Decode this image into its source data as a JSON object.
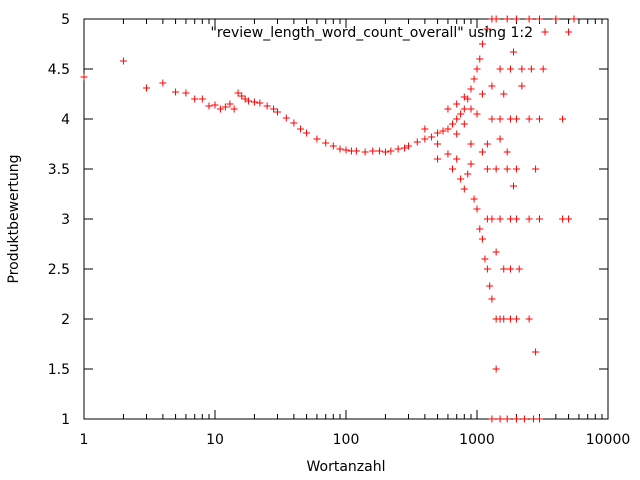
{
  "chart_data": {
    "type": "scatter",
    "xlabel": "Wortanzahl",
    "ylabel": "Produktbewertung",
    "xscale": "log",
    "xlim": [
      1,
      10000
    ],
    "ylim": [
      1,
      5
    ],
    "x_ticks": [
      {
        "value": 1,
        "label": "1"
      },
      {
        "value": 10,
        "label": "10"
      },
      {
        "value": 100,
        "label": "100"
      },
      {
        "value": 1000,
        "label": "1000"
      },
      {
        "value": 10000,
        "label": "10000"
      }
    ],
    "y_ticks": [
      {
        "value": 1,
        "label": "1"
      },
      {
        "value": 1.5,
        "label": "1.5"
      },
      {
        "value": 2,
        "label": "2"
      },
      {
        "value": 2.5,
        "label": "2.5"
      },
      {
        "value": 3,
        "label": "3"
      },
      {
        "value": 3.5,
        "label": "3.5"
      },
      {
        "value": 4,
        "label": "4"
      },
      {
        "value": 4.5,
        "label": "4.5"
      },
      {
        "value": 5,
        "label": "5"
      }
    ],
    "grid": false,
    "legend_position": "top-right",
    "marker": "plus",
    "series": [
      {
        "name": "\"review_length_word_count_overall\" using 1:2",
        "color": "#ff0000",
        "points": [
          [
            1,
            4.42
          ],
          [
            2,
            4.58
          ],
          [
            3,
            4.31
          ],
          [
            4,
            4.36
          ],
          [
            5,
            4.27
          ],
          [
            6,
            4.26
          ],
          [
            7,
            4.2
          ],
          [
            8,
            4.2
          ],
          [
            9,
            4.13
          ],
          [
            10,
            4.14
          ],
          [
            11,
            4.1
          ],
          [
            12,
            4.12
          ],
          [
            13,
            4.15
          ],
          [
            14,
            4.1
          ],
          [
            15,
            4.26
          ],
          [
            16,
            4.23
          ],
          [
            17,
            4.2
          ],
          [
            18,
            4.18
          ],
          [
            20,
            4.17
          ],
          [
            22,
            4.16
          ],
          [
            25,
            4.13
          ],
          [
            28,
            4.1
          ],
          [
            30,
            4.07
          ],
          [
            35,
            4.01
          ],
          [
            40,
            3.96
          ],
          [
            45,
            3.9
          ],
          [
            50,
            3.86
          ],
          [
            60,
            3.8
          ],
          [
            70,
            3.76
          ],
          [
            80,
            3.73
          ],
          [
            90,
            3.7
          ],
          [
            100,
            3.69
          ],
          [
            110,
            3.68
          ],
          [
            120,
            3.68
          ],
          [
            140,
            3.67
          ],
          [
            160,
            3.68
          ],
          [
            180,
            3.68
          ],
          [
            200,
            3.67
          ],
          [
            220,
            3.68
          ],
          [
            250,
            3.7
          ],
          [
            280,
            3.71
          ],
          [
            300,
            3.73
          ],
          [
            350,
            3.77
          ],
          [
            400,
            3.8
          ],
          [
            450,
            3.82
          ],
          [
            500,
            3.86
          ],
          [
            550,
            3.88
          ],
          [
            600,
            3.9
          ],
          [
            650,
            3.95
          ],
          [
            700,
            4.0
          ],
          [
            750,
            4.05
          ],
          [
            800,
            4.1
          ],
          [
            850,
            4.2
          ],
          [
            900,
            4.3
          ],
          [
            950,
            4.4
          ],
          [
            1000,
            4.5
          ],
          [
            1050,
            4.6
          ],
          [
            1100,
            4.75
          ],
          [
            1200,
            4.9
          ],
          [
            1300,
            5.0
          ],
          [
            650,
            3.5
          ],
          [
            700,
            3.6
          ],
          [
            750,
            3.4
          ],
          [
            800,
            3.3
          ],
          [
            850,
            3.45
          ],
          [
            900,
            3.55
          ],
          [
            950,
            3.2
          ],
          [
            1000,
            3.1
          ],
          [
            1050,
            2.9
          ],
          [
            1100,
            2.8
          ],
          [
            1150,
            2.6
          ],
          [
            1200,
            2.5
          ],
          [
            1300,
            2.2
          ],
          [
            1400,
            2.0
          ],
          [
            1500,
            2.0
          ],
          [
            1600,
            2.0
          ],
          [
            1800,
            2.0
          ],
          [
            2000,
            2.0
          ],
          [
            2500,
            2.0
          ],
          [
            1400,
            1.5
          ],
          [
            2800,
            1.67
          ],
          [
            1300,
            1.0
          ],
          [
            1500,
            1.0
          ],
          [
            1700,
            1.0
          ],
          [
            2000,
            1.0
          ],
          [
            2300,
            1.0
          ],
          [
            2700,
            1.0
          ],
          [
            3000,
            1.0
          ],
          [
            1200,
            3.0
          ],
          [
            1300,
            3.0
          ],
          [
            1500,
            3.0
          ],
          [
            1800,
            3.0
          ],
          [
            2000,
            3.0
          ],
          [
            2500,
            3.0
          ],
          [
            3000,
            3.0
          ],
          [
            4500,
            3.0
          ],
          [
            5000,
            3.0
          ],
          [
            1300,
            4.0
          ],
          [
            1500,
            4.0
          ],
          [
            1800,
            4.0
          ],
          [
            2000,
            4.0
          ],
          [
            2500,
            4.0
          ],
          [
            3000,
            4.0
          ],
          [
            4500,
            4.0
          ],
          [
            1500,
            4.5
          ],
          [
            1800,
            4.5
          ],
          [
            2200,
            4.5
          ],
          [
            2600,
            4.5
          ],
          [
            3200,
            4.5
          ],
          [
            1400,
            5.0
          ],
          [
            1700,
            5.0
          ],
          [
            2000,
            5.0
          ],
          [
            2500,
            5.0
          ],
          [
            3000,
            5.0
          ],
          [
            4000,
            5.0
          ],
          [
            5000,
            4.87
          ],
          [
            5500,
            5.0
          ],
          [
            1200,
            3.5
          ],
          [
            1400,
            3.5
          ],
          [
            1700,
            3.5
          ],
          [
            2000,
            3.5
          ],
          [
            2800,
            3.5
          ],
          [
            1100,
            4.25
          ],
          [
            1300,
            4.33
          ],
          [
            1600,
            4.25
          ],
          [
            1900,
            4.67
          ],
          [
            2200,
            4.33
          ],
          [
            1250,
            2.33
          ],
          [
            1400,
            2.67
          ],
          [
            1600,
            2.5
          ],
          [
            1800,
            2.5
          ],
          [
            2100,
            2.5
          ],
          [
            1100,
            3.67
          ],
          [
            1200,
            3.75
          ],
          [
            1500,
            3.8
          ],
          [
            1700,
            3.67
          ],
          [
            1900,
            3.33
          ],
          [
            400,
            3.9
          ],
          [
            500,
            3.75
          ],
          [
            600,
            3.65
          ],
          [
            700,
            3.85
          ],
          [
            800,
            3.95
          ],
          [
            900,
            3.75
          ],
          [
            600,
            4.1
          ],
          [
            700,
            4.15
          ],
          [
            800,
            4.22
          ],
          [
            900,
            4.1
          ],
          [
            1000,
            4.05
          ],
          [
            500,
            3.6
          ]
        ]
      }
    ]
  }
}
